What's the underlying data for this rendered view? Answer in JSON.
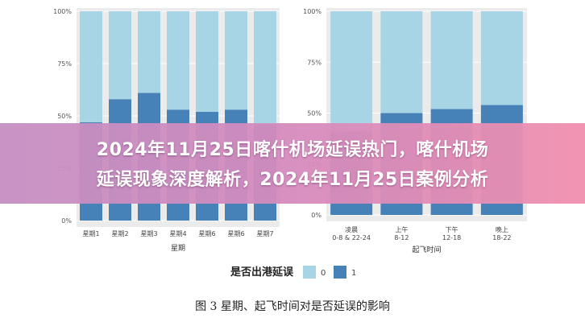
{
  "chart_data": [
    {
      "type": "bar",
      "stacked": true,
      "categories": [
        "星期1",
        "星期2",
        "星期3",
        "星期4",
        "星期6",
        "星期6",
        "星期7"
      ],
      "series": [
        {
          "name": "0",
          "values": [
            53,
            42,
            39,
            47,
            48,
            47,
            54
          ]
        },
        {
          "name": "1",
          "values": [
            47,
            58,
            61,
            53,
            52,
            53,
            46
          ]
        }
      ],
      "xlabel": "星期",
      "ylabel": "",
      "ylim": [
        0,
        100
      ],
      "yticks": [
        "0%",
        "25%",
        "50%",
        "75%",
        "100%"
      ],
      "grid": true
    },
    {
      "type": "bar",
      "stacked": true,
      "categories": [
        "凌晨\n0-8 & 22-24",
        "上午\n8-12",
        "下午\n12-18",
        "晚上\n18-22"
      ],
      "series": [
        {
          "name": "0",
          "values": [
            59,
            50,
            48,
            46
          ]
        },
        {
          "name": "1",
          "values": [
            41,
            50,
            52,
            54
          ]
        }
      ],
      "xlabel": "起飞时间",
      "ylabel": "",
      "ylim": [
        0,
        100
      ],
      "yticks": [
        "0%",
        "25%",
        "50%",
        "75%",
        "100%"
      ],
      "grid": true
    }
  ],
  "legend": {
    "title": "是否出港延误",
    "items": [
      {
        "label": "0",
        "color": "#a8d5e6"
      },
      {
        "label": "1",
        "color": "#4681b8"
      }
    ]
  },
  "colors": {
    "series0": "#a8d5e6",
    "series1": "#4681b8",
    "panel": "#ebebeb",
    "grid": "#ffffff"
  },
  "caption": "图 3  星期、起飞时间对是否延误的影响",
  "banner": {
    "line1": "2024年11月25日喀什机场延误热门，喀什机场",
    "line2": "延误现象深度解析，2024年11月25日案例分析"
  }
}
